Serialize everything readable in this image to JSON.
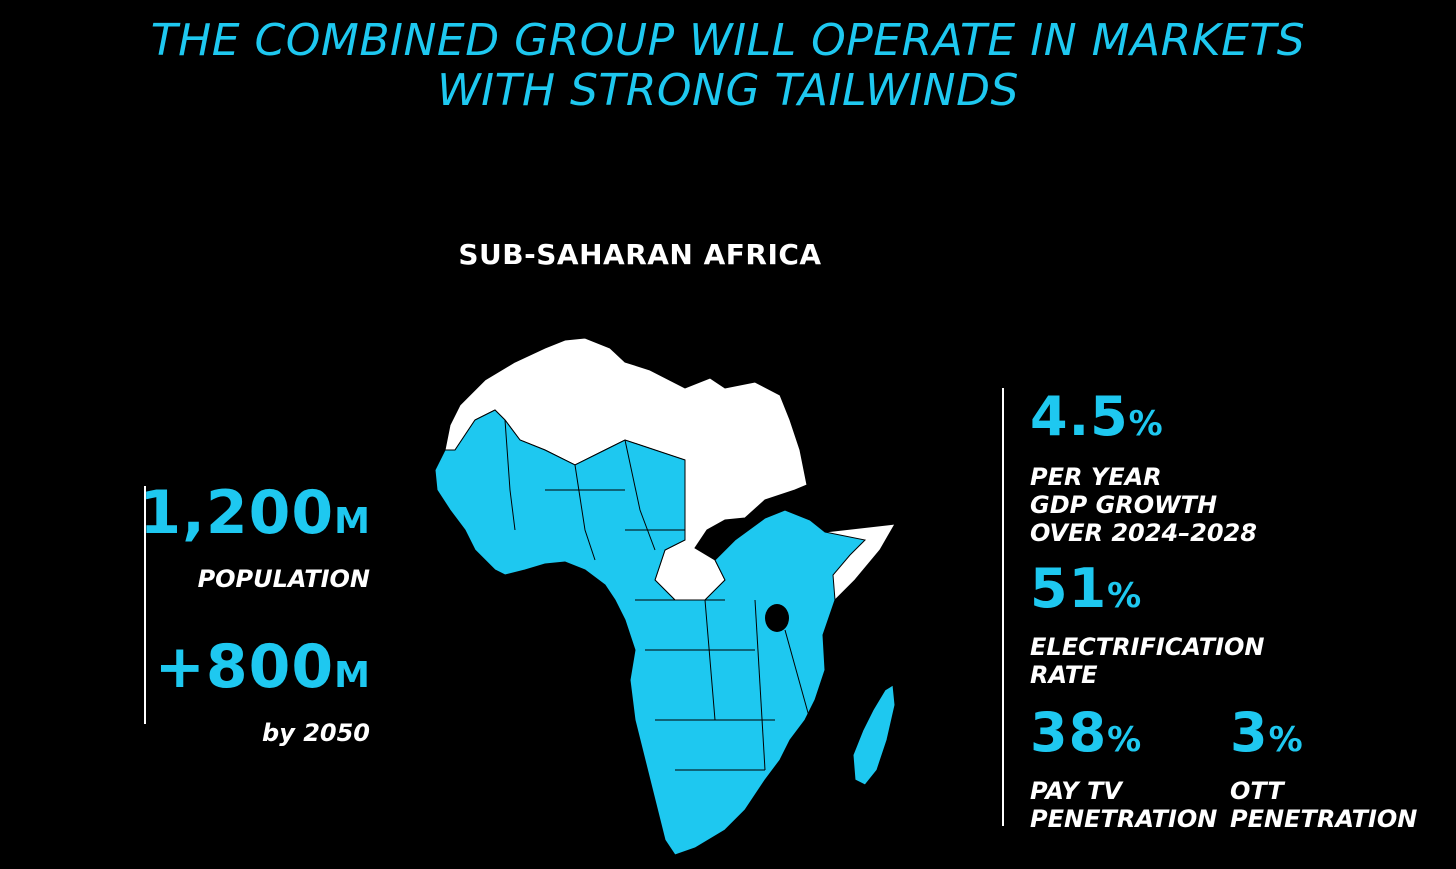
{
  "title": {
    "line1": "THE COMBINED GROUP WILL OPERATE IN MARKETS",
    "line2": "WITH STRONG TAILWINDS"
  },
  "region_label": "SUB-SAHARAN AFRICA",
  "colors": {
    "accent": "#1ec8f0",
    "background": "#000000",
    "highlight_region": "#1ec8f0",
    "other_region": "#ffffff"
  },
  "left_stats": [
    {
      "value": "1,200",
      "unit": "M",
      "label": "POPULATION"
    },
    {
      "value": "+800",
      "unit": "M",
      "label": "by 2050"
    }
  ],
  "right_stats": {
    "gdp": {
      "value": "4.5",
      "unit": "%",
      "label_lines": [
        "PER YEAR",
        "GDP GROWTH",
        "OVER 2024–2028"
      ]
    },
    "electrification": {
      "value": "51",
      "unit": "%",
      "label_lines": [
        "ELECTRIFICATION",
        "RATE"
      ]
    },
    "pay_tv": {
      "value": "38",
      "unit": "%",
      "label_lines": [
        "PAY TV",
        "PENETRATION"
      ]
    },
    "ott": {
      "value": "3",
      "unit": "%",
      "label_lines": [
        "OTT",
        "PENETRATION"
      ]
    }
  }
}
